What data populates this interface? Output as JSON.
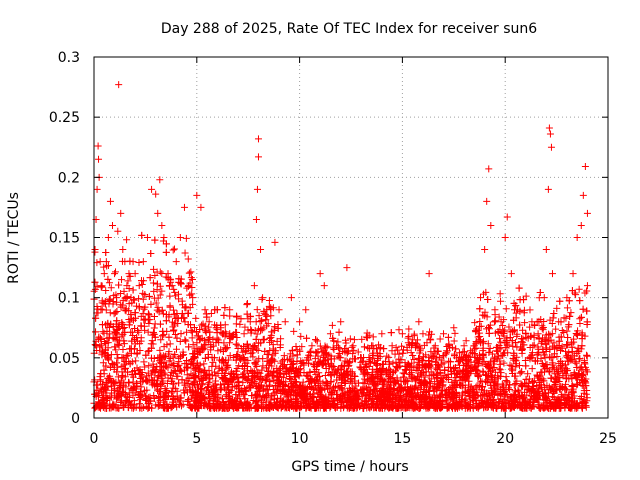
{
  "chart_data": {
    "type": "scatter",
    "title": "Day 288 of 2025, Rate Of TEC Index for receiver sun6",
    "xlabel": "GPS time / hours",
    "ylabel": "ROTI / TECUs",
    "xlim": [
      0,
      25
    ],
    "ylim": [
      0,
      0.3
    ],
    "x_ticks": [
      "0",
      "5",
      "10",
      "15",
      "20",
      "25"
    ],
    "x_tick_values": [
      0,
      5,
      10,
      15,
      20,
      25
    ],
    "y_ticks": [
      "0",
      "0.05",
      "0.1",
      "0.15",
      "0.2",
      "0.25",
      "0.3"
    ],
    "y_tick_values": [
      0,
      0.05,
      0.1,
      0.15,
      0.2,
      0.25,
      0.3
    ],
    "grid": true,
    "marker": "+",
    "color": "#ff0000",
    "series": [
      {
        "values_note": "",
        "points": [
          [
            0.0,
            0.03
          ],
          [
            0.05,
            0.14
          ],
          [
            0.1,
            0.165
          ],
          [
            0.15,
            0.19
          ],
          [
            0.2,
            0.226
          ],
          [
            0.22,
            0.215
          ],
          [
            0.25,
            0.2
          ],
          [
            0.3,
            0.13
          ],
          [
            0.35,
            0.11
          ],
          [
            0.4,
            0.09
          ],
          [
            0.5,
            0.12
          ],
          [
            0.6,
            0.13
          ],
          [
            0.7,
            0.15
          ],
          [
            0.8,
            0.18
          ],
          [
            0.9,
            0.16
          ],
          [
            1.0,
            0.12
          ],
          [
            1.1,
            0.1
          ],
          [
            1.2,
            0.277
          ],
          [
            1.3,
            0.17
          ],
          [
            1.4,
            0.14
          ],
          [
            1.5,
            0.13
          ],
          [
            1.6,
            0.11
          ],
          [
            1.7,
            0.12
          ],
          [
            1.8,
            0.1
          ],
          [
            1.9,
            0.13
          ],
          [
            2.0,
            0.12
          ],
          [
            2.2,
            0.11
          ],
          [
            2.4,
            0.13
          ],
          [
            2.6,
            0.15
          ],
          [
            2.8,
            0.19
          ],
          [
            3.0,
            0.186
          ],
          [
            3.1,
            0.17
          ],
          [
            3.2,
            0.198
          ],
          [
            3.3,
            0.16
          ],
          [
            3.4,
            0.15
          ],
          [
            3.6,
            0.12
          ],
          [
            3.8,
            0.11
          ],
          [
            4.0,
            0.13
          ],
          [
            4.2,
            0.15
          ],
          [
            4.4,
            0.175
          ],
          [
            4.6,
            0.11
          ],
          [
            4.8,
            0.1
          ],
          [
            5.0,
            0.185
          ],
          [
            5.2,
            0.175
          ],
          [
            5.4,
            0.09
          ],
          [
            5.6,
            0.08
          ],
          [
            6.0,
            0.09
          ],
          [
            6.3,
            0.07
          ],
          [
            6.6,
            0.09
          ],
          [
            7.0,
            0.06
          ],
          [
            7.3,
            0.07
          ],
          [
            7.6,
            0.08
          ],
          [
            7.8,
            0.11
          ],
          [
            7.9,
            0.165
          ],
          [
            7.95,
            0.19
          ],
          [
            8.0,
            0.232
          ],
          [
            8.0,
            0.217
          ],
          [
            8.1,
            0.14
          ],
          [
            8.2,
            0.1
          ],
          [
            8.4,
            0.09
          ],
          [
            8.6,
            0.085
          ],
          [
            8.8,
            0.146
          ],
          [
            9.0,
            0.09
          ],
          [
            9.3,
            0.08
          ],
          [
            9.6,
            0.1
          ],
          [
            10.0,
            0.08
          ],
          [
            10.3,
            0.09
          ],
          [
            10.6,
            0.06
          ],
          [
            11.0,
            0.12
          ],
          [
            11.2,
            0.11
          ],
          [
            11.5,
            0.07
          ],
          [
            11.8,
            0.06
          ],
          [
            12.0,
            0.08
          ],
          [
            12.3,
            0.125
          ],
          [
            12.6,
            0.06
          ],
          [
            13.0,
            0.05
          ],
          [
            13.5,
            0.06
          ],
          [
            14.0,
            0.07
          ],
          [
            14.5,
            0.06
          ],
          [
            15.0,
            0.07
          ],
          [
            15.5,
            0.065
          ],
          [
            15.8,
            0.08
          ],
          [
            16.0,
            0.07
          ],
          [
            16.3,
            0.12
          ],
          [
            16.6,
            0.06
          ],
          [
            17.0,
            0.07
          ],
          [
            17.5,
            0.075
          ],
          [
            18.0,
            0.06
          ],
          [
            18.5,
            0.06
          ],
          [
            18.8,
            0.1
          ],
          [
            19.0,
            0.14
          ],
          [
            19.1,
            0.18
          ],
          [
            19.2,
            0.207
          ],
          [
            19.3,
            0.16
          ],
          [
            19.5,
            0.09
          ],
          [
            19.8,
            0.08
          ],
          [
            20.0,
            0.15
          ],
          [
            20.1,
            0.167
          ],
          [
            20.3,
            0.12
          ],
          [
            20.6,
            0.09
          ],
          [
            21.0,
            0.07
          ],
          [
            21.3,
            0.08
          ],
          [
            21.6,
            0.07
          ],
          [
            21.9,
            0.1
          ],
          [
            22.0,
            0.14
          ],
          [
            22.1,
            0.19
          ],
          [
            22.15,
            0.241
          ],
          [
            22.2,
            0.236
          ],
          [
            22.25,
            0.225
          ],
          [
            22.3,
            0.12
          ],
          [
            22.6,
            0.08
          ],
          [
            23.0,
            0.1
          ],
          [
            23.3,
            0.12
          ],
          [
            23.5,
            0.15
          ],
          [
            23.7,
            0.16
          ],
          [
            23.8,
            0.185
          ],
          [
            23.9,
            0.209
          ],
          [
            24.0,
            0.17
          ],
          [
            24.0,
            0.11
          ]
        ]
      }
    ]
  }
}
